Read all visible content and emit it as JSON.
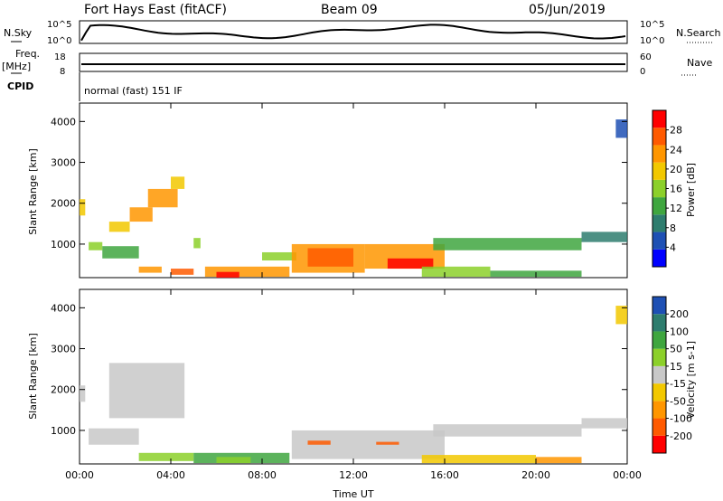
{
  "header": {
    "station": "Fort Hays East (fitACF)",
    "beam": "Beam 09",
    "date": "05/Jun/2019"
  },
  "summary": {
    "left_labels": {
      "nsky": "N.Sky",
      "freq": "Freq.",
      "freq_unit": "[MHz]",
      "cpid": "CPID"
    },
    "right_labels": {
      "nsearch": "N.Search",
      "nave": "Nave"
    },
    "nsky_ticks": [
      "10^5",
      "10^0"
    ],
    "nsearch_ticks": [
      "10^5",
      "10^0"
    ],
    "freq_ticks": [
      "18",
      "8"
    ],
    "nave_ticks": [
      "60",
      "0"
    ],
    "cpid_text": "normal (fast) 151 IF",
    "freq_range": [
      8,
      18
    ],
    "nave_range": [
      0,
      60
    ]
  },
  "chart_data": [
    {
      "type": "heatmap",
      "panel": "power",
      "ylabel": "Slant Range [km]",
      "xlabel": "",
      "x_ticks": [
        "00:00",
        "04:00",
        "08:00",
        "12:00",
        "16:00",
        "20:00",
        "00:00"
      ],
      "y_ticks": [
        1000,
        2000,
        3000,
        4000
      ],
      "xlim_hours": [
        0,
        24
      ],
      "ylim_km": [
        180,
        4450
      ],
      "colorbar": {
        "label": "Power [dB]",
        "ticks": [
          "28",
          "24",
          "20",
          "16",
          "12",
          "8",
          "4"
        ],
        "colors": [
          "#0000ff",
          "#1e50b4",
          "#2e7d6e",
          "#3fa63f",
          "#8cd02a",
          "#f2c800",
          "#ff9600",
          "#ff5a00",
          "#ff0000"
        ]
      },
      "regions": [
        {
          "t0": 0.0,
          "t1": 0.25,
          "r0": 1700,
          "r1": 2100,
          "level": 5
        },
        {
          "t0": 0.4,
          "t1": 1.0,
          "r0": 850,
          "r1": 1050,
          "level": 4
        },
        {
          "t0": 1.0,
          "t1": 2.6,
          "r0": 650,
          "r1": 950,
          "level": 3
        },
        {
          "t0": 1.3,
          "t1": 2.2,
          "r0": 1300,
          "r1": 1550,
          "level": 5
        },
        {
          "t0": 2.2,
          "t1": 3.2,
          "r0": 1550,
          "r1": 1900,
          "level": 6
        },
        {
          "t0": 3.0,
          "t1": 4.3,
          "r0": 1900,
          "r1": 2350,
          "level": 6
        },
        {
          "t0": 4.0,
          "t1": 4.6,
          "r0": 2350,
          "r1": 2650,
          "level": 5
        },
        {
          "t0": 2.6,
          "t1": 3.6,
          "r0": 300,
          "r1": 450,
          "level": 6
        },
        {
          "t0": 4.0,
          "t1": 5.0,
          "r0": 250,
          "r1": 400,
          "level": 7
        },
        {
          "t0": 5.0,
          "t1": 5.3,
          "r0": 900,
          "r1": 1150,
          "level": 4
        },
        {
          "t0": 5.5,
          "t1": 9.2,
          "r0": 200,
          "r1": 450,
          "level": 6
        },
        {
          "t0": 6.0,
          "t1": 7.0,
          "r0": 180,
          "r1": 320,
          "level": 8
        },
        {
          "t0": 8.0,
          "t1": 9.5,
          "r0": 600,
          "r1": 800,
          "level": 4
        },
        {
          "t0": 9.3,
          "t1": 12.5,
          "r0": 300,
          "r1": 1000,
          "level": 6
        },
        {
          "t0": 10.0,
          "t1": 12.0,
          "r0": 450,
          "r1": 900,
          "level": 7
        },
        {
          "t0": 12.5,
          "t1": 16.0,
          "r0": 400,
          "r1": 1000,
          "level": 6
        },
        {
          "t0": 13.5,
          "t1": 15.5,
          "r0": 400,
          "r1": 650,
          "level": 8
        },
        {
          "t0": 15.5,
          "t1": 22.0,
          "r0": 850,
          "r1": 1150,
          "level": 3
        },
        {
          "t0": 15.0,
          "t1": 18.0,
          "r0": 200,
          "r1": 450,
          "level": 4
        },
        {
          "t0": 18.0,
          "t1": 22.0,
          "r0": 200,
          "r1": 350,
          "level": 3
        },
        {
          "t0": 22.0,
          "t1": 24.0,
          "r0": 1050,
          "r1": 1300,
          "level": 2
        },
        {
          "t0": 23.5,
          "t1": 24.0,
          "r0": 3600,
          "r1": 4050,
          "level": 1
        }
      ]
    },
    {
      "type": "heatmap",
      "panel": "velocity",
      "ylabel": "Slant Range [km]",
      "xlabel": "Time UT",
      "x_ticks": [
        "00:00",
        "04:00",
        "08:00",
        "12:00",
        "16:00",
        "20:00",
        "00:00"
      ],
      "y_ticks": [
        1000,
        2000,
        3000,
        4000
      ],
      "xlim_hours": [
        0,
        24
      ],
      "ylim_km": [
        180,
        4450
      ],
      "colorbar": {
        "label": "Velocity [m s-1]",
        "ticks": [
          "200",
          "100",
          "50",
          "15",
          "-15",
          "-50",
          "-100",
          "-200"
        ],
        "colors": [
          "#ff0000",
          "#ff5a00",
          "#ff9600",
          "#f2c800",
          "#c8c8c8",
          "#8cd02a",
          "#3fa63f",
          "#2e7d6e",
          "#1e50b4"
        ]
      },
      "regions": [
        {
          "t0": 0.0,
          "t1": 0.25,
          "r0": 1700,
          "r1": 2100,
          "level": 4
        },
        {
          "t0": 0.4,
          "t1": 2.6,
          "r0": 650,
          "r1": 1050,
          "level": 4
        },
        {
          "t0": 1.3,
          "t1": 4.6,
          "r0": 1300,
          "r1": 2650,
          "level": 4
        },
        {
          "t0": 2.6,
          "t1": 5.0,
          "r0": 250,
          "r1": 450,
          "level": 5
        },
        {
          "t0": 5.0,
          "t1": 9.2,
          "r0": 200,
          "r1": 450,
          "level": 6
        },
        {
          "t0": 6.0,
          "t1": 7.5,
          "r0": 200,
          "r1": 350,
          "level": 5
        },
        {
          "t0": 9.3,
          "t1": 16.0,
          "r0": 300,
          "r1": 1000,
          "level": 4
        },
        {
          "t0": 10.0,
          "t1": 11.0,
          "r0": 650,
          "r1": 750,
          "level": 1
        },
        {
          "t0": 13.0,
          "t1": 14.0,
          "r0": 650,
          "r1": 720,
          "level": 1
        },
        {
          "t0": 15.5,
          "t1": 22.0,
          "r0": 850,
          "r1": 1150,
          "level": 4
        },
        {
          "t0": 15.0,
          "t1": 20.0,
          "r0": 200,
          "r1": 400,
          "level": 3
        },
        {
          "t0": 20.0,
          "t1": 22.0,
          "r0": 200,
          "r1": 350,
          "level": 2
        },
        {
          "t0": 22.0,
          "t1": 24.0,
          "r0": 1050,
          "r1": 1300,
          "level": 4
        },
        {
          "t0": 23.5,
          "t1": 24.0,
          "r0": 3600,
          "r1": 4050,
          "level": 3
        }
      ]
    }
  ]
}
